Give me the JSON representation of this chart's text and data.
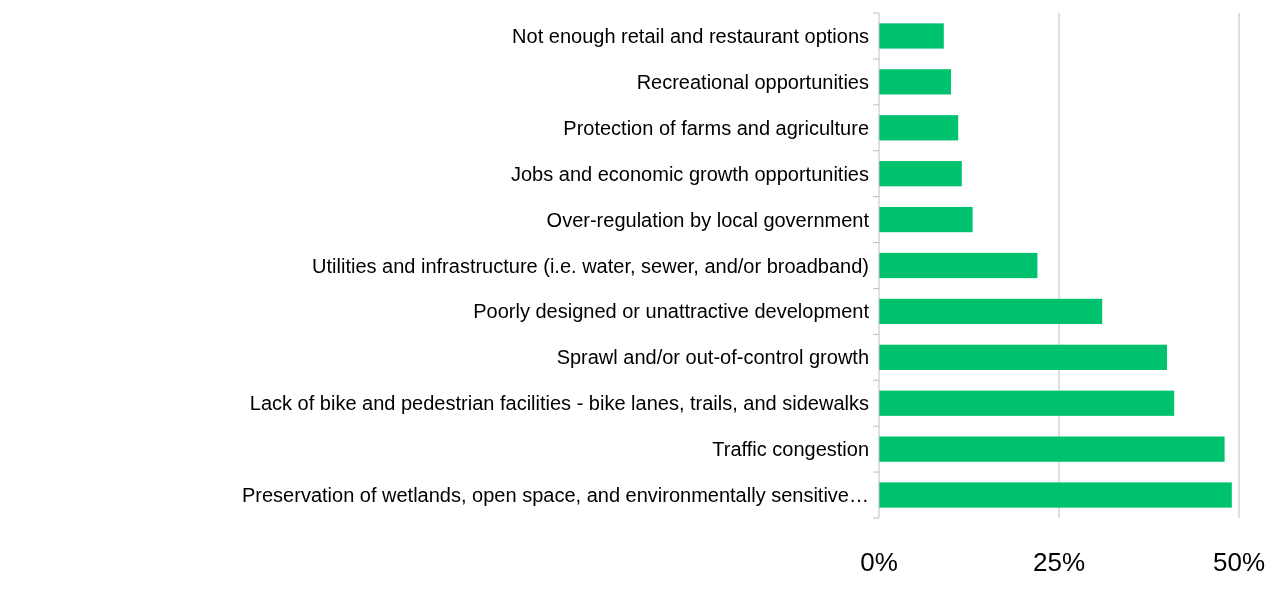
{
  "chart_data": {
    "type": "bar",
    "orientation": "horizontal",
    "categories": [
      "Not enough retail and restaurant options",
      "Recreational opportunities",
      "Protection of farms and agriculture",
      "Jobs and economic growth opportunities",
      "Over-regulation by local government",
      "Utilities and infrastructure (i.e. water, sewer, and/or broadband)",
      "Poorly designed or unattractive development",
      "Sprawl and/or out-of-control growth",
      "Lack of bike and pedestrian facilities - bike lanes, trails, and sidewalks",
      "Traffic congestion",
      "Preservation of wetlands, open space, and environmentally sensitive…"
    ],
    "values": [
      9,
      10,
      11,
      11.5,
      13,
      22,
      31,
      40,
      41,
      48,
      49
    ],
    "color": "#00c16e",
    "xlim": [
      0,
      50
    ],
    "xticks": [
      {
        "value": 0,
        "label": "0%"
      },
      {
        "value": 25,
        "label": "25%"
      },
      {
        "value": 50,
        "label": "50%"
      }
    ],
    "grid": "x"
  }
}
